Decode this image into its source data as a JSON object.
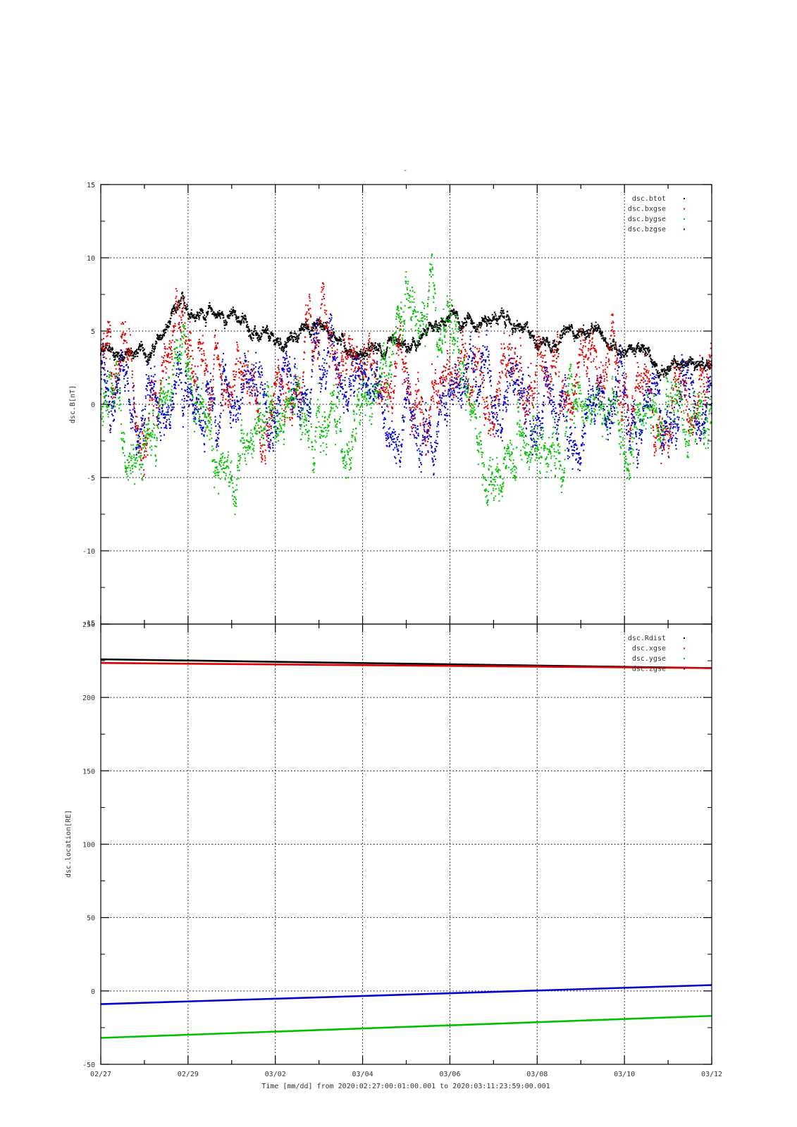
{
  "figure": {
    "title": "-",
    "xlabel": "Time [mm/dd]  from 2020:02:27:00:01:00.001  to  2020:03:11:23:59:00.001"
  },
  "chart_data": [
    {
      "type": "scatter",
      "ylabel": "dsc.B[nT]",
      "ylim": [
        -15,
        15
      ],
      "yticks": [
        -15,
        -10,
        -5,
        0,
        5,
        10,
        15
      ],
      "x_range": [
        "02/27",
        "03/12"
      ],
      "x_tick_labels": [
        "02/27",
        "02/29",
        "03/02",
        "03/04",
        "03/06",
        "03/08",
        "03/10",
        "03/12"
      ],
      "grid": true,
      "legend_position": "top-right",
      "series": [
        {
          "name": "dsc.btot",
          "color": "#000000",
          "x": [
            "02/27",
            "02/28",
            "02/29",
            "03/01",
            "03/02",
            "03/03",
            "03/04",
            "03/05",
            "03/06",
            "03/07",
            "03/08",
            "03/09",
            "03/10",
            "03/11",
            "03/12"
          ],
          "y": [
            3.5,
            3.5,
            6.5,
            6,
            4,
            5.5,
            3.5,
            3.5,
            6,
            6,
            4.5,
            5,
            4,
            2.5,
            3
          ]
        },
        {
          "name": "dsc.bxgse",
          "color": "#e00000",
          "x": [
            "02/27",
            "02/28",
            "02/29",
            "03/01",
            "03/02",
            "03/03",
            "03/04",
            "03/05",
            "03/06",
            "03/07",
            "03/08",
            "03/09",
            "03/10",
            "03/11",
            "03/12"
          ],
          "y": [
            3,
            1,
            4,
            2,
            1,
            4,
            2,
            0.5,
            2,
            3,
            2,
            2.5,
            2,
            0.5,
            2
          ]
        },
        {
          "name": "dsc.bygse",
          "color": "#00c000",
          "x": [
            "02/27",
            "02/28",
            "02/29",
            "03/01",
            "03/02",
            "03/03",
            "03/04",
            "03/05",
            "03/06",
            "03/07",
            "03/08",
            "03/09",
            "03/10",
            "03/11",
            "03/12"
          ],
          "y": [
            0,
            -2,
            3,
            -4,
            -1,
            -1,
            -2,
            5,
            5,
            -4,
            -2,
            1,
            -2,
            0,
            -1
          ]
        },
        {
          "name": "dsc.bzgse",
          "color": "#0000d0",
          "x": [
            "02/27",
            "02/28",
            "02/29",
            "03/01",
            "03/02",
            "03/03",
            "03/04",
            "03/05",
            "03/06",
            "03/07",
            "03/08",
            "03/09",
            "03/10",
            "03/11",
            "03/12"
          ],
          "y": [
            1,
            0,
            1,
            1,
            2,
            2,
            1,
            -3,
            1,
            3,
            0,
            -1,
            0,
            1,
            1
          ]
        }
      ]
    },
    {
      "type": "line",
      "ylabel": "dsc.location[RE]",
      "ylim": [
        -50,
        250
      ],
      "yticks": [
        -50,
        0,
        50,
        100,
        150,
        200,
        250
      ],
      "x_range": [
        "02/27",
        "03/12"
      ],
      "x_tick_labels": [
        "02/27",
        "02/29",
        "03/02",
        "03/04",
        "03/06",
        "03/08",
        "03/10",
        "03/12"
      ],
      "grid": true,
      "legend_position": "top-right",
      "series": [
        {
          "name": "dsc.Rdist",
          "color": "#000000",
          "x": [
            "02/27",
            "03/12"
          ],
          "y": [
            226,
            220
          ]
        },
        {
          "name": "dsc.xgse",
          "color": "#e00000",
          "x": [
            "02/27",
            "03/12"
          ],
          "y": [
            223.5,
            220
          ]
        },
        {
          "name": "dsc.ygse",
          "color": "#00c000",
          "x": [
            "02/27",
            "03/12"
          ],
          "y": [
            -32,
            -17
          ]
        },
        {
          "name": "dsc.zgse",
          "color": "#0000d0",
          "x": [
            "02/27",
            "03/12"
          ],
          "y": [
            -9,
            4
          ]
        }
      ]
    }
  ]
}
